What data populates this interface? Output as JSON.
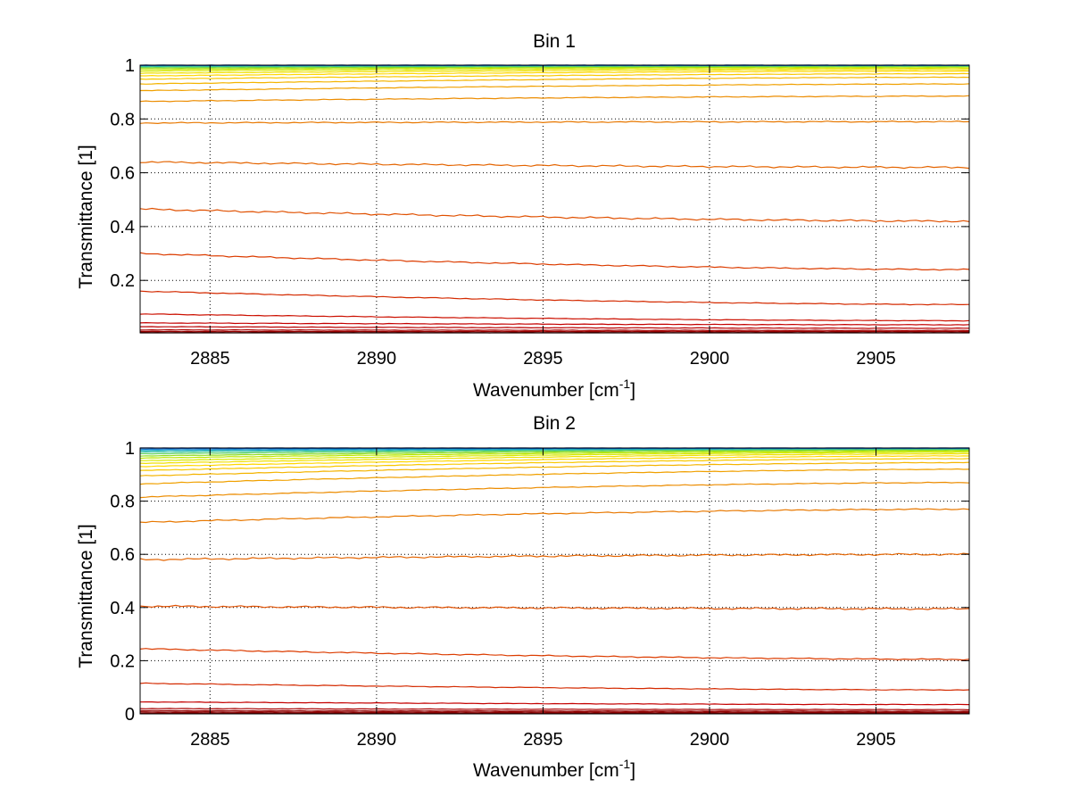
{
  "chart_data": [
    {
      "type": "line",
      "title": "Bin 1",
      "xlabel": "Wavenumber [cm",
      "xlabel_sup": "-1",
      "xlabel_suffix": "]",
      "ylabel": "Transmittance [1]",
      "xlim": [
        2882.9,
        2907.8
      ],
      "ylim": [
        0.005,
        1.0
      ],
      "xticks": [
        2885,
        2890,
        2895,
        2900,
        2905
      ],
      "xtick_labels": [
        "2885",
        "2890",
        "2895",
        "2900",
        "2905"
      ],
      "yticks": [
        0.2,
        0.4,
        0.6,
        0.8,
        1.0
      ],
      "ytick_labels": [
        "0.2",
        "0.4",
        "0.6",
        "0.8",
        "1"
      ],
      "grid": true,
      "curves_note": "family of transmittance spectra; each series has level at x-start and x-end",
      "series": [
        {
          "start": 0.003,
          "end": 0.003,
          "color": "#800000"
        },
        {
          "start": 0.006,
          "end": 0.006,
          "color": "#8a0000"
        },
        {
          "start": 0.01,
          "end": 0.01,
          "color": "#960000"
        },
        {
          "start": 0.016,
          "end": 0.014,
          "color": "#a80000"
        },
        {
          "start": 0.028,
          "end": 0.022,
          "color": "#b80000"
        },
        {
          "start": 0.042,
          "end": 0.035,
          "color": "#c40000"
        },
        {
          "start": 0.075,
          "end": 0.05,
          "color": "#cc1000"
        },
        {
          "start": 0.16,
          "end": 0.11,
          "color": "#d42a00"
        },
        {
          "start": 0.3,
          "end": 0.24,
          "color": "#dc3c00"
        },
        {
          "start": 0.465,
          "end": 0.42,
          "color": "#e05000"
        },
        {
          "start": 0.64,
          "end": 0.62,
          "color": "#e46400"
        },
        {
          "start": 0.785,
          "end": 0.79,
          "color": "#e87800"
        },
        {
          "start": 0.865,
          "end": 0.885,
          "color": "#ec8c00"
        },
        {
          "start": 0.905,
          "end": 0.93,
          "color": "#f0a000"
        },
        {
          "start": 0.93,
          "end": 0.955,
          "color": "#f4b400"
        },
        {
          "start": 0.948,
          "end": 0.968,
          "color": "#f8c800"
        },
        {
          "start": 0.96,
          "end": 0.978,
          "color": "#ffd700"
        },
        {
          "start": 0.97,
          "end": 0.984,
          "color": "#f0e000"
        },
        {
          "start": 0.978,
          "end": 0.989,
          "color": "#d8e800"
        },
        {
          "start": 0.984,
          "end": 0.993,
          "color": "#bce800"
        },
        {
          "start": 0.989,
          "end": 0.995,
          "color": "#8edc20"
        },
        {
          "start": 0.993,
          "end": 0.997,
          "color": "#5cd060"
        },
        {
          "start": 0.996,
          "end": 0.998,
          "color": "#30c0a0"
        },
        {
          "start": 0.998,
          "end": 0.999,
          "color": "#18a8c8"
        },
        {
          "start": 0.9995,
          "end": 0.9998,
          "color": "#1070d0"
        },
        {
          "start": 1.0,
          "end": 1.0,
          "color": "#0040c0"
        }
      ]
    },
    {
      "type": "line",
      "title": "Bin 2",
      "xlabel": "Wavenumber [cm",
      "xlabel_sup": "-1",
      "xlabel_suffix": "]",
      "ylabel": "Transmittance [1]",
      "xlim": [
        2882.9,
        2907.8
      ],
      "ylim": [
        0.0,
        1.0
      ],
      "xticks": [
        2885,
        2890,
        2895,
        2900,
        2905
      ],
      "xtick_labels": [
        "2885",
        "2890",
        "2895",
        "2900",
        "2905"
      ],
      "yticks": [
        0.0,
        0.2,
        0.4,
        0.6,
        0.8,
        1.0
      ],
      "ytick_labels": [
        "0",
        "0.2",
        "0.4",
        "0.6",
        "0.8",
        "1"
      ],
      "grid": true,
      "series": [
        {
          "start": 0.003,
          "end": 0.003,
          "color": "#800000"
        },
        {
          "start": 0.007,
          "end": 0.006,
          "color": "#8a0000"
        },
        {
          "start": 0.012,
          "end": 0.01,
          "color": "#960000"
        },
        {
          "start": 0.02,
          "end": 0.016,
          "color": "#a80000"
        },
        {
          "start": 0.045,
          "end": 0.035,
          "color": "#c40000"
        },
        {
          "start": 0.115,
          "end": 0.09,
          "color": "#d42a00"
        },
        {
          "start": 0.245,
          "end": 0.205,
          "color": "#dc3c00"
        },
        {
          "start": 0.405,
          "end": 0.395,
          "color": "#e05000"
        },
        {
          "start": 0.58,
          "end": 0.6,
          "color": "#e46400"
        },
        {
          "start": 0.72,
          "end": 0.77,
          "color": "#e87800"
        },
        {
          "start": 0.815,
          "end": 0.87,
          "color": "#ec8c00"
        },
        {
          "start": 0.865,
          "end": 0.92,
          "color": "#f0a000"
        },
        {
          "start": 0.895,
          "end": 0.945,
          "color": "#f4b400"
        },
        {
          "start": 0.915,
          "end": 0.96,
          "color": "#f8c800"
        },
        {
          "start": 0.93,
          "end": 0.97,
          "color": "#ffd700"
        },
        {
          "start": 0.942,
          "end": 0.978,
          "color": "#f0e000"
        },
        {
          "start": 0.952,
          "end": 0.984,
          "color": "#d8e800"
        },
        {
          "start": 0.962,
          "end": 0.988,
          "color": "#bce800"
        },
        {
          "start": 0.97,
          "end": 0.992,
          "color": "#8edc20"
        },
        {
          "start": 0.978,
          "end": 0.995,
          "color": "#5cd060"
        },
        {
          "start": 0.985,
          "end": 0.997,
          "color": "#30c0a0"
        },
        {
          "start": 0.991,
          "end": 0.998,
          "color": "#18a8c8"
        },
        {
          "start": 0.996,
          "end": 0.999,
          "color": "#1070d0"
        },
        {
          "start": 1.0,
          "end": 1.0,
          "color": "#0040c0"
        }
      ]
    }
  ]
}
